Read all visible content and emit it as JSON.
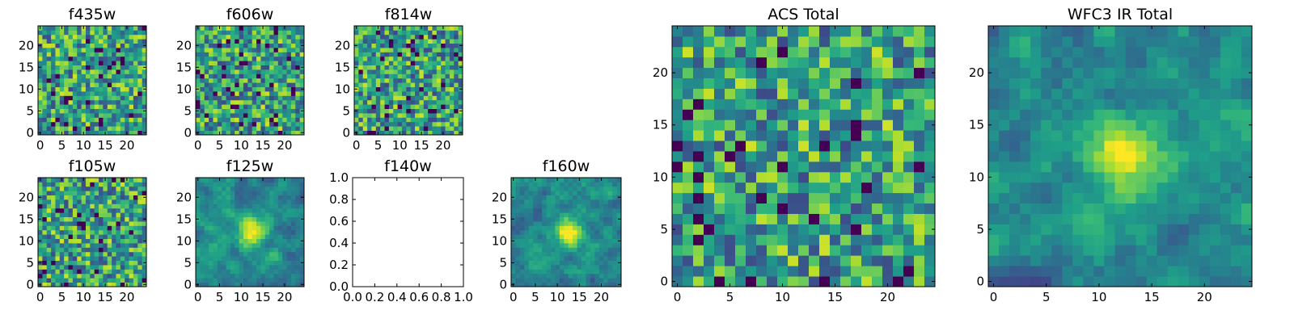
{
  "chart_data": [
    {
      "type": "heatmap",
      "title": "f435w",
      "x_ticks": [
        "0",
        "5",
        "10",
        "15",
        "20"
      ],
      "y_ticks": [
        "0",
        "5",
        "10",
        "15",
        "20"
      ],
      "xlim": [
        -0.5,
        24.5
      ],
      "ylim": [
        -0.5,
        24.5
      ],
      "grid_size": 25,
      "colormap": "viridis",
      "pattern": "noise",
      "seed": 11
    },
    {
      "type": "heatmap",
      "title": "f606w",
      "x_ticks": [
        "0",
        "5",
        "10",
        "15",
        "20"
      ],
      "y_ticks": [
        "0",
        "5",
        "10",
        "15",
        "20"
      ],
      "xlim": [
        -0.5,
        24.5
      ],
      "ylim": [
        -0.5,
        24.5
      ],
      "grid_size": 25,
      "colormap": "viridis",
      "pattern": "noise",
      "seed": 23
    },
    {
      "type": "heatmap",
      "title": "f814w",
      "x_ticks": [
        "0",
        "5",
        "10",
        "15",
        "20"
      ],
      "y_ticks": [
        "0",
        "5",
        "10",
        "15",
        "20"
      ],
      "xlim": [
        -0.5,
        24.5
      ],
      "ylim": [
        -0.5,
        24.5
      ],
      "grid_size": 25,
      "colormap": "viridis",
      "pattern": "noise",
      "seed": 37
    },
    {
      "type": "heatmap",
      "title": "f105w",
      "x_ticks": [
        "0",
        "5",
        "10",
        "15",
        "20"
      ],
      "y_ticks": [
        "0",
        "5",
        "10",
        "15",
        "20"
      ],
      "xlim": [
        -0.5,
        24.5
      ],
      "ylim": [
        -0.5,
        24.5
      ],
      "grid_size": 25,
      "colormap": "viridis",
      "pattern": "noise",
      "seed": 41
    },
    {
      "type": "heatmap",
      "title": "f125w",
      "x_ticks": [
        "0",
        "5",
        "10",
        "15",
        "20"
      ],
      "y_ticks": [
        "0",
        "5",
        "10",
        "15",
        "20"
      ],
      "xlim": [
        -0.5,
        24.5
      ],
      "ylim": [
        -0.5,
        24.5
      ],
      "grid_size": 25,
      "colormap": "viridis",
      "pattern": "blob",
      "seed": 53
    },
    {
      "type": "empty",
      "title": "f140w",
      "x_ticks": [
        "0.0",
        "0.2",
        "0.4",
        "0.6",
        "0.8",
        "1.0"
      ],
      "y_ticks": [
        "0.0",
        "0.2",
        "0.4",
        "0.6",
        "0.8",
        "1.0"
      ],
      "xlim": [
        0,
        1
      ],
      "ylim": [
        0,
        1
      ]
    },
    {
      "type": "heatmap",
      "title": "f160w",
      "x_ticks": [
        "0",
        "5",
        "10",
        "15",
        "20"
      ],
      "y_ticks": [
        "0",
        "5",
        "10",
        "15",
        "20"
      ],
      "xlim": [
        -0.5,
        24.5
      ],
      "ylim": [
        -0.5,
        24.5
      ],
      "grid_size": 25,
      "colormap": "viridis",
      "pattern": "blob",
      "seed": 67
    },
    {
      "type": "heatmap",
      "title": "ACS Total",
      "x_ticks": [
        "0",
        "5",
        "10",
        "15",
        "20"
      ],
      "y_ticks": [
        "0",
        "5",
        "10",
        "15",
        "20"
      ],
      "xlim": [
        -0.5,
        24.5
      ],
      "ylim": [
        -0.5,
        24.5
      ],
      "grid_size": 25,
      "colormap": "viridis",
      "pattern": "noise",
      "seed": 79
    },
    {
      "type": "heatmap",
      "title": "WFC3 IR Total",
      "x_ticks": [
        "0",
        "5",
        "10",
        "15",
        "20"
      ],
      "y_ticks": [
        "0",
        "5",
        "10",
        "15",
        "20"
      ],
      "xlim": [
        -0.5,
        24.5
      ],
      "ylim": [
        -0.5,
        24.5
      ],
      "grid_size": 25,
      "colormap": "viridis",
      "pattern": "blob",
      "seed": 97
    }
  ]
}
